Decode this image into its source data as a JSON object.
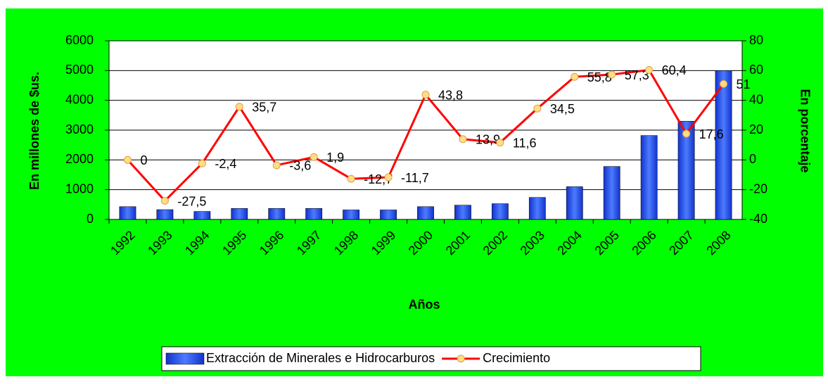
{
  "chart_data": {
    "type": "bar",
    "x_label": "Años",
    "y_label": "En millones de $us.",
    "y2_label": "En porcentaje",
    "categories": [
      "1992",
      "1993",
      "1994",
      "1995",
      "1996",
      "1997",
      "1998",
      "1999",
      "2000",
      "2001",
      "2002",
      "2003",
      "2004",
      "2005",
      "2006",
      "2007",
      "2008"
    ],
    "series": [
      {
        "name": "Extracción de Minerales e Hidrocarburos",
        "type": "bar",
        "color": "#3366ff",
        "values": [
          430,
          330,
          270,
          370,
          370,
          370,
          320,
          320,
          430,
          480,
          530,
          740,
          1100,
          1780,
          2820,
          3300,
          5000
        ]
      },
      {
        "name": "Crecimiento",
        "type": "line",
        "axis": "y2",
        "color": "#ff0000",
        "marker_color": "#ffdd88",
        "values": [
          0,
          -27.5,
          -2.4,
          35.7,
          -3.6,
          1.9,
          -12.7,
          -11.7,
          43.8,
          13.9,
          11.6,
          34.5,
          55.8,
          57.3,
          60.4,
          17.6,
          51
        ],
        "value_labels": [
          "0",
          "-27,5",
          "-2,4",
          "35,7",
          "-3,6",
          "1,9",
          "-12,7",
          "-11,7",
          "43,8",
          "13,9",
          "11,6",
          "34,5",
          "55,8",
          "57,3",
          "60,4",
          "17,6",
          "51"
        ]
      }
    ],
    "ylim": [
      0,
      6000
    ],
    "yticks": [
      0,
      1000,
      2000,
      3000,
      4000,
      5000,
      6000
    ],
    "y2lim": [
      -40,
      80
    ],
    "y2ticks": [
      -40,
      -20,
      0,
      20,
      40,
      60,
      80
    ],
    "grid": true,
    "legend": "bottom",
    "background": "#00ff00"
  }
}
